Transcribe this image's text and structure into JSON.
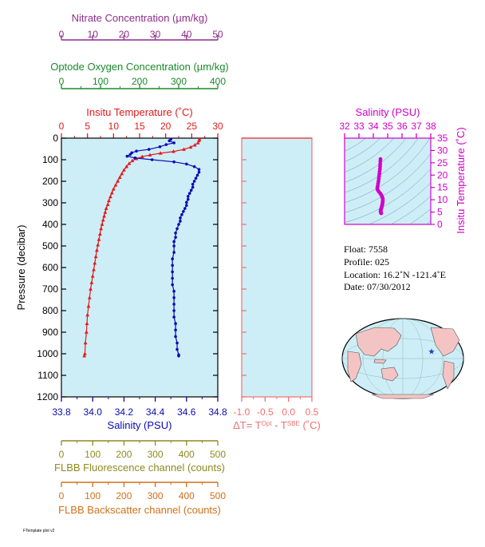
{
  "colors": {
    "nitrate": "#8b2d8b",
    "oxygen": "#1a8a2a",
    "temperature": "#e41a1c",
    "salinity": "#0a0ab4",
    "delta": "#f07070",
    "ts": "#d000c8",
    "fluorescence": "#8f8a1e",
    "backscatter": "#d0701a",
    "plot_bg": "#cdeef7",
    "land": "#f4c4c4",
    "ocean": "#cdeef7",
    "marker": "#2233cc"
  },
  "axes": {
    "nitrate": {
      "title": "Nitrate Concentration (µm/kg)",
      "ticks": [
        "0",
        "10",
        "20",
        "30",
        "40",
        "50"
      ],
      "range": [
        0,
        50
      ]
    },
    "oxygen": {
      "title": "Optode Oxygen Concentration (µm/kg)",
      "ticks": [
        "0",
        "100",
        "200",
        "300",
        "400"
      ],
      "range": [
        0,
        400
      ]
    },
    "temperature": {
      "title": "Insitu Temperature (˚C)",
      "ticks": [
        "0",
        "5",
        "10",
        "15",
        "20",
        "25",
        "30"
      ],
      "range": [
        0,
        30
      ]
    },
    "salinity": {
      "title": "Salinity (PSU)",
      "ticks": [
        "33.8",
        "34.0",
        "34.2",
        "34.4",
        "34.6",
        "34.8"
      ],
      "range": [
        33.8,
        34.8
      ]
    },
    "pressure": {
      "title": "Pressure (decibar)",
      "ticks": [
        "0",
        "100",
        "200",
        "300",
        "400",
        "500",
        "600",
        "700",
        "800",
        "900",
        "1000",
        "1100",
        "1200"
      ],
      "range": [
        0,
        1200
      ]
    },
    "delta_t": {
      "title_prefix": "ΔT= T",
      "sup1": "Opt",
      "title_mid": " - T",
      "sup2": "SBE",
      "title_suffix": " (˚C)",
      "ticks": [
        "-1.0",
        "-0.5",
        "0.0",
        "0.5"
      ],
      "range": [
        -1.0,
        0.5
      ]
    },
    "fluorescence": {
      "title": "FLBB Fluorescence channel (counts)",
      "ticks": [
        "0",
        "100",
        "200",
        "300",
        "400",
        "500"
      ],
      "range": [
        0,
        500
      ]
    },
    "backscatter": {
      "title": "FLBB Backscatter channel (counts)",
      "ticks": [
        "0",
        "100",
        "200",
        "300",
        "400",
        "500"
      ],
      "range": [
        0,
        500
      ]
    },
    "ts_salinity": {
      "title": "Salinity (PSU)",
      "ticks": [
        "32",
        "33",
        "34",
        "35",
        "36",
        "37",
        "38"
      ],
      "range": [
        32,
        38
      ]
    },
    "ts_temperature": {
      "title": "Insitu Temperature (˚C)",
      "ticks": [
        "0",
        "5",
        "10",
        "15",
        "20",
        "25",
        "30",
        "35"
      ],
      "range": [
        0,
        35
      ]
    }
  },
  "info": {
    "float": "Float:  7558",
    "profile": "Profile:  025",
    "location": "Location:  16.2˚N  -121.4˚E",
    "date": "Date:  07/30/2012"
  },
  "footer_text": "FTemplate plot v2",
  "chart_data": [
    {
      "type": "line",
      "name": "temperature-profile",
      "x_unit": "˚C",
      "y_unit": "decibar",
      "points": [
        [
          26.5,
          5
        ],
        [
          26.4,
          12
        ],
        [
          26.2,
          22
        ],
        [
          25.6,
          32
        ],
        [
          24.8,
          42
        ],
        [
          23.5,
          52
        ],
        [
          21.5,
          62
        ],
        [
          19.0,
          70
        ],
        [
          17.0,
          78
        ],
        [
          15.5,
          86
        ],
        [
          14.4,
          95
        ],
        [
          13.6,
          105
        ],
        [
          13.0,
          118
        ],
        [
          12.5,
          132
        ],
        [
          12.0,
          148
        ],
        [
          11.6,
          165
        ],
        [
          11.2,
          182
        ],
        [
          10.8,
          200
        ],
        [
          10.4,
          218
        ],
        [
          10.0,
          236
        ],
        [
          9.7,
          254
        ],
        [
          9.4,
          272
        ],
        [
          9.1,
          290
        ],
        [
          8.9,
          308
        ],
        [
          8.6,
          326
        ],
        [
          8.4,
          344
        ],
        [
          8.2,
          362
        ],
        [
          8.0,
          380
        ],
        [
          7.8,
          400
        ],
        [
          7.6,
          420
        ],
        [
          7.4,
          445
        ],
        [
          7.2,
          470
        ],
        [
          7.0,
          495
        ],
        [
          6.8,
          520
        ],
        [
          6.6,
          550
        ],
        [
          6.4,
          580
        ],
        [
          6.2,
          610
        ],
        [
          6.0,
          640
        ],
        [
          5.8,
          670
        ],
        [
          5.6,
          700
        ],
        [
          5.4,
          740
        ],
        [
          5.2,
          780
        ],
        [
          5.0,
          820
        ],
        [
          4.9,
          860
        ],
        [
          4.8,
          900
        ],
        [
          4.6,
          950
        ],
        [
          4.5,
          1000
        ],
        [
          4.4,
          1010
        ]
      ]
    },
    {
      "type": "line",
      "name": "salinity-profile",
      "x_unit": "PSU",
      "y_unit": "decibar",
      "points": [
        [
          34.5,
          5
        ],
        [
          34.49,
          12
        ],
        [
          34.52,
          22
        ],
        [
          34.47,
          30
        ],
        [
          34.43,
          40
        ],
        [
          34.36,
          52
        ],
        [
          34.28,
          60
        ],
        [
          34.25,
          68
        ],
        [
          34.24,
          76
        ],
        [
          34.22,
          84
        ],
        [
          34.27,
          92
        ],
        [
          34.38,
          100
        ],
        [
          34.52,
          110
        ],
        [
          34.6,
          120
        ],
        [
          34.65,
          132
        ],
        [
          34.68,
          145
        ],
        [
          34.68,
          158
        ],
        [
          34.67,
          172
        ],
        [
          34.66,
          186
        ],
        [
          34.65,
          200
        ],
        [
          34.64,
          214
        ],
        [
          34.64,
          228
        ],
        [
          34.63,
          242
        ],
        [
          34.62,
          256
        ],
        [
          34.61,
          270
        ],
        [
          34.61,
          284
        ],
        [
          34.6,
          298
        ],
        [
          34.6,
          312
        ],
        [
          34.59,
          326
        ],
        [
          34.58,
          340
        ],
        [
          34.57,
          355
        ],
        [
          34.56,
          370
        ],
        [
          34.56,
          385
        ],
        [
          34.55,
          400
        ],
        [
          34.54,
          420
        ],
        [
          34.53,
          440
        ],
        [
          34.53,
          460
        ],
        [
          34.52,
          480
        ],
        [
          34.52,
          500
        ],
        [
          34.52,
          530
        ],
        [
          34.51,
          560
        ],
        [
          34.51,
          590
        ],
        [
          34.51,
          620
        ],
        [
          34.51,
          650
        ],
        [
          34.51,
          680
        ],
        [
          34.52,
          710
        ],
        [
          34.52,
          740
        ],
        [
          34.52,
          770
        ],
        [
          34.52,
          800
        ],
        [
          34.52,
          830
        ],
        [
          34.53,
          860
        ],
        [
          34.53,
          890
        ],
        [
          34.53,
          920
        ],
        [
          34.54,
          950
        ],
        [
          34.54,
          980
        ],
        [
          34.55,
          1005
        ],
        [
          34.55,
          1010
        ]
      ]
    },
    {
      "type": "scatter",
      "name": "ts-diagram",
      "x_unit": "PSU",
      "y_unit": "˚C",
      "points": [
        [
          34.5,
          26.5
        ],
        [
          34.49,
          25.6
        ],
        [
          34.48,
          24.5
        ],
        [
          34.47,
          23.5
        ],
        [
          34.46,
          22.5
        ],
        [
          34.44,
          21.5
        ],
        [
          34.42,
          20.5
        ],
        [
          34.4,
          19.5
        ],
        [
          34.38,
          18.5
        ],
        [
          34.36,
          17.5
        ],
        [
          34.33,
          16.5
        ],
        [
          34.3,
          15.5
        ],
        [
          34.28,
          14.8
        ],
        [
          34.3,
          14.0
        ],
        [
          34.38,
          13.3
        ],
        [
          34.48,
          12.6
        ],
        [
          34.55,
          12.0
        ],
        [
          34.6,
          11.4
        ],
        [
          34.64,
          10.8
        ],
        [
          34.66,
          10.2
        ],
        [
          34.66,
          9.6
        ],
        [
          34.65,
          9.0
        ],
        [
          34.64,
          8.5
        ],
        [
          34.62,
          8.0
        ],
        [
          34.6,
          7.5
        ],
        [
          34.58,
          7.0
        ],
        [
          34.56,
          6.6
        ],
        [
          34.54,
          6.2
        ],
        [
          34.52,
          5.8
        ],
        [
          34.51,
          5.4
        ],
        [
          34.52,
          5.0
        ],
        [
          34.53,
          4.7
        ],
        [
          34.55,
          4.5
        ]
      ]
    },
    {
      "type": "scatter",
      "name": "float-location",
      "points": [
        [
          -121.4,
          16.2
        ]
      ]
    }
  ]
}
